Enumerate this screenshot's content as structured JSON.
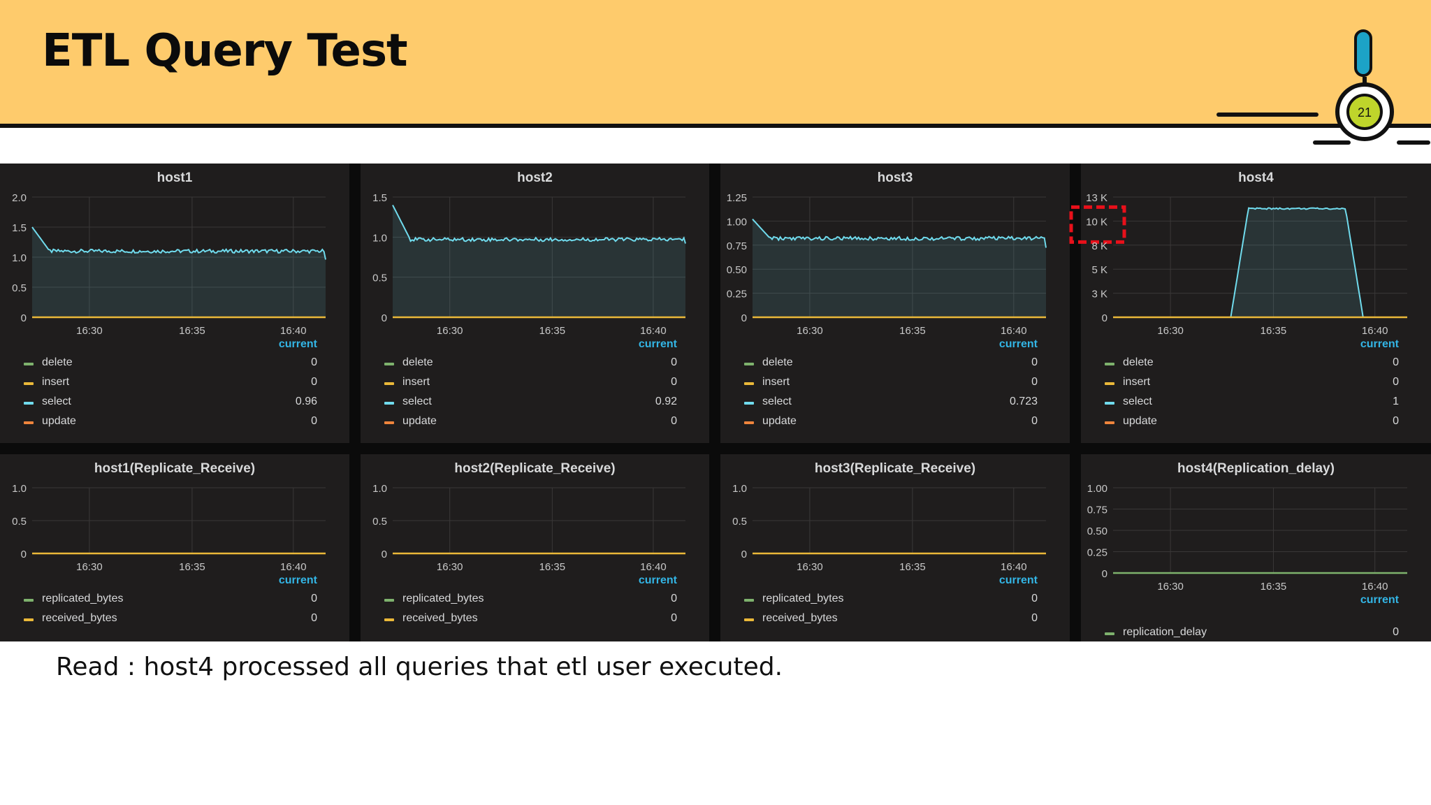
{
  "slide": {
    "title": "ETL Query Test",
    "page_number": "21",
    "footnote": "Read : host4 processed all queries that etl user executed."
  },
  "legend_header": "current",
  "colors": {
    "select": "#70dbed",
    "delete": "#7eb26d",
    "insert": "#eab839",
    "update": "#ef843c",
    "replicated_bytes": "#7eb26d",
    "received_bytes": "#eab839",
    "replication_delay": "#7eb26d",
    "highlight": "#e8101a"
  },
  "chart_data": [
    {
      "type": "area",
      "title": "host1",
      "x": [
        "16:30",
        "16:35",
        "16:40"
      ],
      "y_ticks": [
        "2.0",
        "1.5",
        "1.0",
        "0.5",
        "0"
      ],
      "ylim": [
        0,
        2.0
      ],
      "series": [
        {
          "name": "delete",
          "current": "0"
        },
        {
          "name": "insert",
          "current": "0"
        },
        {
          "name": "select",
          "current": "0.96"
        },
        {
          "name": "update",
          "current": "0"
        }
      ]
    },
    {
      "type": "area",
      "title": "host2",
      "x": [
        "16:30",
        "16:35",
        "16:40"
      ],
      "y_ticks": [
        "1.5",
        "1.0",
        "0.5",
        "0"
      ],
      "ylim": [
        0,
        1.5
      ],
      "series": [
        {
          "name": "delete",
          "current": "0"
        },
        {
          "name": "insert",
          "current": "0"
        },
        {
          "name": "select",
          "current": "0.92"
        },
        {
          "name": "update",
          "current": "0"
        }
      ]
    },
    {
      "type": "area",
      "title": "host3",
      "x": [
        "16:30",
        "16:35",
        "16:40"
      ],
      "y_ticks": [
        "1.25",
        "1.00",
        "0.75",
        "0.50",
        "0.25",
        "0"
      ],
      "ylim": [
        0,
        1.25
      ],
      "series": [
        {
          "name": "delete",
          "current": "0"
        },
        {
          "name": "insert",
          "current": "0"
        },
        {
          "name": "select",
          "current": "0.723"
        },
        {
          "name": "update",
          "current": "0"
        }
      ]
    },
    {
      "type": "area",
      "title": "host4",
      "x": [
        "16:30",
        "16:35",
        "16:40"
      ],
      "y_ticks": [
        "13 K",
        "10 K",
        "8 K",
        "5 K",
        "3 K",
        "0"
      ],
      "ylim": [
        0,
        12500
      ],
      "highlighted_tick": "10 K",
      "series": [
        {
          "name": "delete",
          "current": "0"
        },
        {
          "name": "insert",
          "current": "0"
        },
        {
          "name": "select",
          "current": "1"
        },
        {
          "name": "update",
          "current": "0"
        }
      ]
    },
    {
      "type": "line",
      "title": "host1(Replicate_Receive)",
      "x": [
        "16:30",
        "16:35",
        "16:40"
      ],
      "y_ticks": [
        "1.0",
        "0.5",
        "0"
      ],
      "ylim": [
        0,
        1.0
      ],
      "series": [
        {
          "name": "replicated_bytes",
          "current": "0"
        },
        {
          "name": "received_bytes",
          "current": "0"
        }
      ]
    },
    {
      "type": "line",
      "title": "host2(Replicate_Receive)",
      "x": [
        "16:30",
        "16:35",
        "16:40"
      ],
      "y_ticks": [
        "1.0",
        "0.5",
        "0"
      ],
      "ylim": [
        0,
        1.0
      ],
      "series": [
        {
          "name": "replicated_bytes",
          "current": "0"
        },
        {
          "name": "received_bytes",
          "current": "0"
        }
      ]
    },
    {
      "type": "line",
      "title": "host3(Replicate_Receive)",
      "x": [
        "16:30",
        "16:35",
        "16:40"
      ],
      "y_ticks": [
        "1.0",
        "0.5",
        "0"
      ],
      "ylim": [
        0,
        1.0
      ],
      "series": [
        {
          "name": "replicated_bytes",
          "current": "0"
        },
        {
          "name": "received_bytes",
          "current": "0"
        }
      ]
    },
    {
      "type": "line",
      "title": "host4(Replication_delay)",
      "x": [
        "16:30",
        "16:35",
        "16:40"
      ],
      "y_ticks": [
        "1.00",
        "0.75",
        "0.50",
        "0.25",
        "0"
      ],
      "ylim": [
        0,
        1.0
      ],
      "series": [
        {
          "name": "replication_delay",
          "current": "0"
        }
      ]
    }
  ]
}
